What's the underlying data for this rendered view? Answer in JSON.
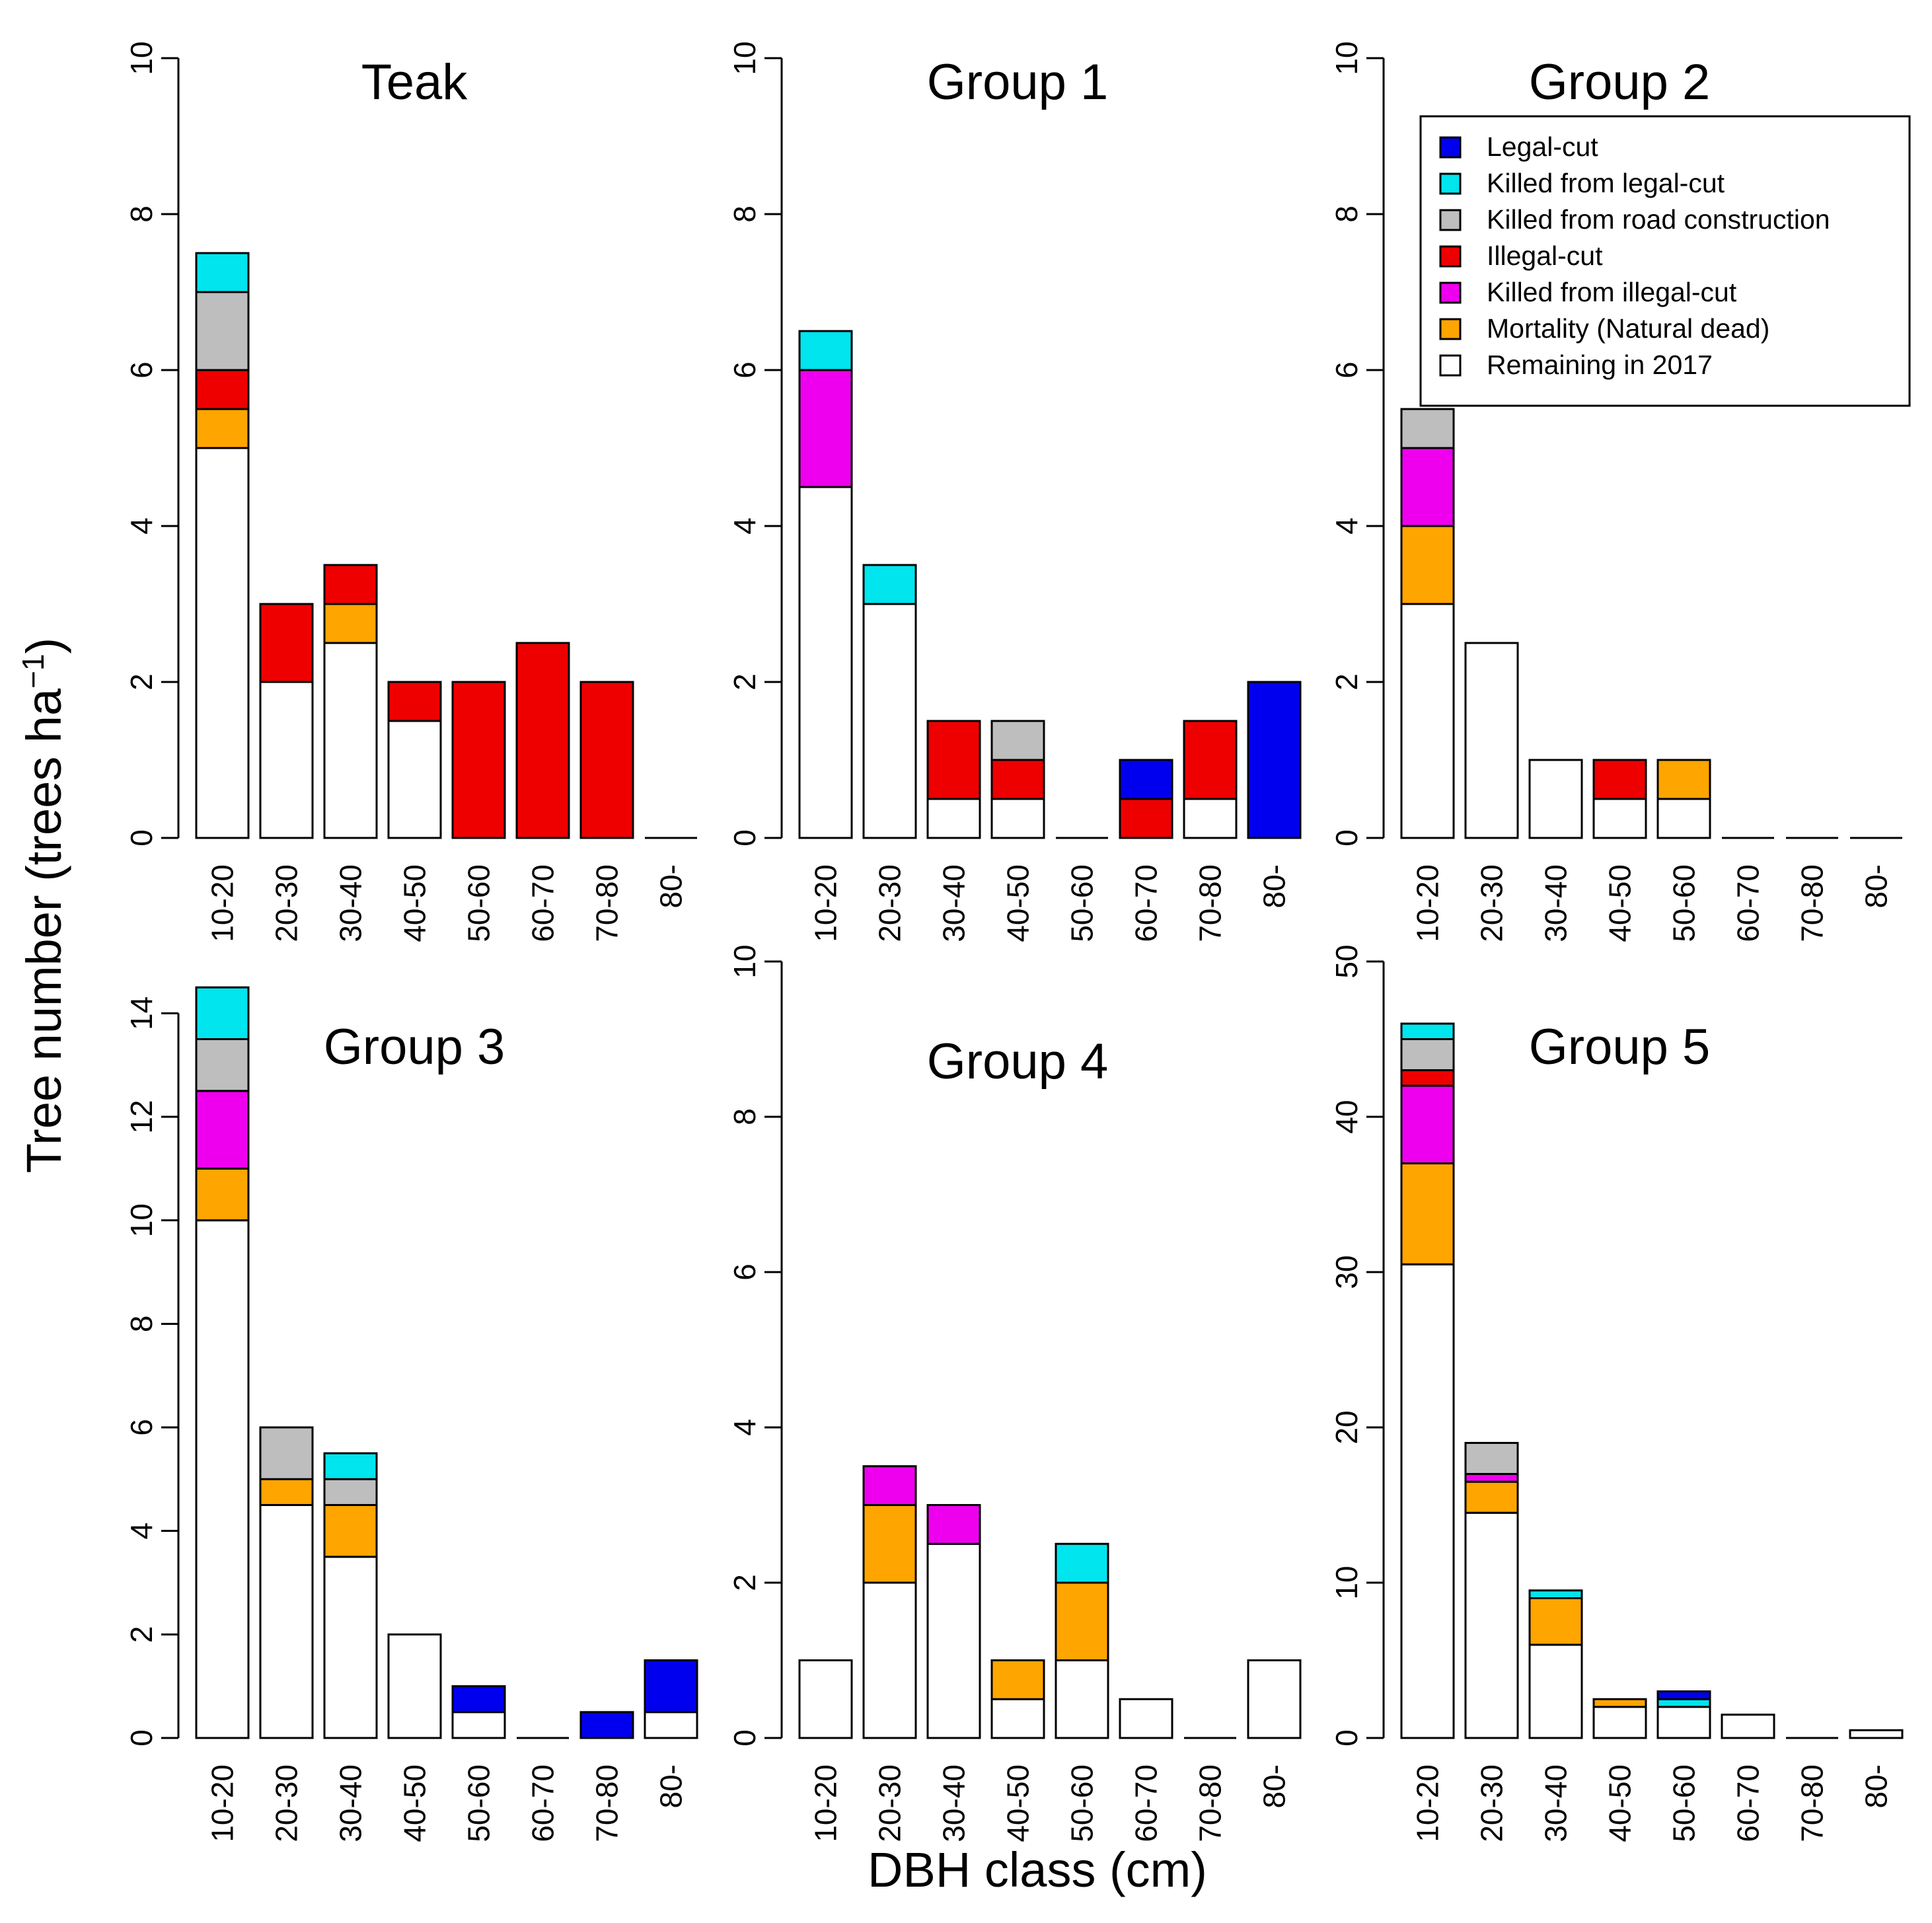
{
  "figure": {
    "ylabel_main": "Tree number (trees ha",
    "ylabel_sup": "−1",
    "ylabel_close": ")",
    "xlabel": "DBH class (cm)"
  },
  "colors": {
    "legal_cut": "#0000ee",
    "killed_legal_cut": "#00e5ee",
    "killed_road": "#bebebe",
    "illegal_cut": "#ee0000",
    "killed_illegal_cut": "#ee00ee",
    "mortality": "#ffa500",
    "remaining": "#ffffff"
  },
  "legend": [
    {
      "key": "legal_cut",
      "label": "Legal-cut"
    },
    {
      "key": "killed_legal_cut",
      "label": "Killed from legal-cut"
    },
    {
      "key": "killed_road",
      "label": "Killed from road construction"
    },
    {
      "key": "illegal_cut",
      "label": "Illegal-cut"
    },
    {
      "key": "killed_illegal_cut",
      "label": "Killed from illegal-cut"
    },
    {
      "key": "mortality",
      "label": "Mortality (Natural dead)"
    },
    {
      "key": "remaining",
      "label": "Remaining in 2017"
    }
  ],
  "chart_data": [
    {
      "type": "bar",
      "title": "Teak",
      "categories": [
        "10-20",
        "20-30",
        "30-40",
        "40-50",
        "50-60",
        "60-70",
        "70-80",
        "80-"
      ],
      "ylim": [
        0,
        10
      ],
      "yticks": [
        0,
        2,
        4,
        6,
        8,
        10
      ],
      "series": [
        {
          "name": "Remaining in 2017",
          "key": "remaining",
          "values": [
            5,
            2,
            2.5,
            1.5,
            0,
            0,
            0,
            0
          ]
        },
        {
          "name": "Mortality (Natural dead)",
          "key": "mortality",
          "values": [
            0.5,
            0,
            0.5,
            0,
            0,
            0,
            0,
            0
          ]
        },
        {
          "name": "Killed from illegal-cut",
          "key": "killed_illegal_cut",
          "values": [
            0,
            0,
            0,
            0,
            0,
            0,
            0,
            0
          ]
        },
        {
          "name": "Illegal-cut",
          "key": "illegal_cut",
          "values": [
            0.5,
            1,
            0.5,
            0.5,
            2,
            2.5,
            2,
            0
          ]
        },
        {
          "name": "Killed from road construction",
          "key": "killed_road",
          "values": [
            1,
            0,
            0,
            0,
            0,
            0,
            0,
            0
          ]
        },
        {
          "name": "Killed from legal-cut",
          "key": "killed_legal_cut",
          "values": [
            0.5,
            0,
            0,
            0,
            0,
            0,
            0,
            0
          ]
        },
        {
          "name": "Legal-cut",
          "key": "legal_cut",
          "values": [
            0,
            0,
            0,
            0,
            0,
            0,
            0,
            0
          ]
        }
      ]
    },
    {
      "type": "bar",
      "title": "Group 1",
      "categories": [
        "10-20",
        "20-30",
        "30-40",
        "40-50",
        "50-60",
        "60-70",
        "70-80",
        "80-"
      ],
      "ylim": [
        0,
        10
      ],
      "yticks": [
        0,
        2,
        4,
        6,
        8,
        10
      ],
      "series": [
        {
          "name": "Remaining in 2017",
          "key": "remaining",
          "values": [
            4.5,
            3,
            0.5,
            0.5,
            0,
            0,
            0.5,
            0
          ]
        },
        {
          "name": "Mortality (Natural dead)",
          "key": "mortality",
          "values": [
            0,
            0,
            0,
            0,
            0,
            0,
            0,
            0
          ]
        },
        {
          "name": "Killed from illegal-cut",
          "key": "killed_illegal_cut",
          "values": [
            1.5,
            0,
            0,
            0,
            0,
            0,
            0,
            0
          ]
        },
        {
          "name": "Illegal-cut",
          "key": "illegal_cut",
          "values": [
            0,
            0,
            1,
            0.5,
            0,
            0.5,
            1,
            0
          ]
        },
        {
          "name": "Killed from road construction",
          "key": "killed_road",
          "values": [
            0,
            0,
            0,
            0.5,
            0,
            0,
            0,
            0
          ]
        },
        {
          "name": "Killed from legal-cut",
          "key": "killed_legal_cut",
          "values": [
            0.5,
            0.5,
            0,
            0,
            0,
            0,
            0,
            0
          ]
        },
        {
          "name": "Legal-cut",
          "key": "legal_cut",
          "values": [
            0,
            0,
            0,
            0,
            0,
            0.5,
            0,
            2
          ]
        }
      ]
    },
    {
      "type": "bar",
      "title": "Group 2",
      "categories": [
        "10-20",
        "20-30",
        "30-40",
        "40-50",
        "50-60",
        "60-70",
        "70-80",
        "80-"
      ],
      "ylim": [
        0,
        10
      ],
      "yticks": [
        0,
        2,
        4,
        6,
        8,
        10
      ],
      "series": [
        {
          "name": "Remaining in 2017",
          "key": "remaining",
          "values": [
            3,
            2.5,
            1,
            0.5,
            0.5,
            0,
            0,
            0
          ]
        },
        {
          "name": "Mortality (Natural dead)",
          "key": "mortality",
          "values": [
            1,
            0,
            0,
            0,
            0.5,
            0,
            0,
            0
          ]
        },
        {
          "name": "Killed from illegal-cut",
          "key": "killed_illegal_cut",
          "values": [
            1,
            0,
            0,
            0,
            0,
            0,
            0,
            0
          ]
        },
        {
          "name": "Illegal-cut",
          "key": "illegal_cut",
          "values": [
            0,
            0,
            0,
            0.5,
            0,
            0,
            0,
            0
          ]
        },
        {
          "name": "Killed from road construction",
          "key": "killed_road",
          "values": [
            0.5,
            0,
            0,
            0,
            0,
            0,
            0,
            0
          ]
        },
        {
          "name": "Killed from legal-cut",
          "key": "killed_legal_cut",
          "values": [
            0,
            0,
            0,
            0,
            0,
            0,
            0,
            0
          ]
        },
        {
          "name": "Legal-cut",
          "key": "legal_cut",
          "values": [
            0,
            0,
            0,
            0,
            0,
            0,
            0,
            0
          ]
        }
      ]
    },
    {
      "type": "bar",
      "title": "Group 3",
      "categories": [
        "10-20",
        "20-30",
        "30-40",
        "40-50",
        "50-60",
        "60-70",
        "70-80",
        "80-"
      ],
      "ylim": [
        0,
        15
      ],
      "yticks": [
        0,
        2,
        4,
        6,
        8,
        10,
        12,
        14
      ],
      "series": [
        {
          "name": "Remaining in 2017",
          "key": "remaining",
          "values": [
            10,
            4.5,
            3.5,
            2,
            0.5,
            0,
            0,
            0.5
          ]
        },
        {
          "name": "Mortality (Natural dead)",
          "key": "mortality",
          "values": [
            1,
            0.5,
            1,
            0,
            0,
            0,
            0,
            0
          ]
        },
        {
          "name": "Killed from illegal-cut",
          "key": "killed_illegal_cut",
          "values": [
            1.5,
            0,
            0,
            0,
            0,
            0,
            0,
            0
          ]
        },
        {
          "name": "Illegal-cut",
          "key": "illegal_cut",
          "values": [
            0,
            0,
            0,
            0,
            0,
            0,
            0,
            0
          ]
        },
        {
          "name": "Killed from road construction",
          "key": "killed_road",
          "values": [
            1,
            1,
            0.5,
            0,
            0,
            0,
            0,
            0
          ]
        },
        {
          "name": "Killed from legal-cut",
          "key": "killed_legal_cut",
          "values": [
            1,
            0,
            0.5,
            0,
            0,
            0,
            0,
            0
          ]
        },
        {
          "name": "Legal-cut",
          "key": "legal_cut",
          "values": [
            0,
            0,
            0,
            0,
            0.5,
            0,
            0.5,
            1
          ]
        }
      ]
    },
    {
      "type": "bar",
      "title": "Group 4",
      "categories": [
        "10-20",
        "20-30",
        "30-40",
        "40-50",
        "50-60",
        "60-70",
        "70-80",
        "80-"
      ],
      "ylim": [
        0,
        10
      ],
      "yticks": [
        0,
        2,
        4,
        6,
        8,
        10
      ],
      "series": [
        {
          "name": "Remaining in 2017",
          "key": "remaining",
          "values": [
            1,
            2,
            2.5,
            0.5,
            1,
            0.5,
            0,
            1
          ]
        },
        {
          "name": "Mortality (Natural dead)",
          "key": "mortality",
          "values": [
            0,
            1,
            0,
            0.5,
            1,
            0,
            0,
            0
          ]
        },
        {
          "name": "Killed from illegal-cut",
          "key": "killed_illegal_cut",
          "values": [
            0,
            0.5,
            0.5,
            0,
            0,
            0,
            0,
            0
          ]
        },
        {
          "name": "Illegal-cut",
          "key": "illegal_cut",
          "values": [
            0,
            0,
            0,
            0,
            0,
            0,
            0,
            0
          ]
        },
        {
          "name": "Killed from road construction",
          "key": "killed_road",
          "values": [
            0,
            0,
            0,
            0,
            0,
            0,
            0,
            0
          ]
        },
        {
          "name": "Killed from legal-cut",
          "key": "killed_legal_cut",
          "values": [
            0,
            0,
            0,
            0,
            0.5,
            0,
            0,
            0
          ]
        },
        {
          "name": "Legal-cut",
          "key": "legal_cut",
          "values": [
            0,
            0,
            0,
            0,
            0,
            0,
            0,
            0
          ]
        }
      ]
    },
    {
      "type": "bar",
      "title": "Group 5",
      "categories": [
        "10-20",
        "20-30",
        "30-40",
        "40-50",
        "50-60",
        "60-70",
        "70-80",
        "80-"
      ],
      "ylim": [
        0,
        50
      ],
      "yticks": [
        0,
        10,
        20,
        30,
        40,
        50
      ],
      "series": [
        {
          "name": "Remaining in 2017",
          "key": "remaining",
          "values": [
            30.5,
            14.5,
            6,
            2,
            2,
            1.5,
            0,
            0.5
          ]
        },
        {
          "name": "Mortality (Natural dead)",
          "key": "mortality",
          "values": [
            6.5,
            2,
            3,
            0.5,
            0,
            0,
            0,
            0
          ]
        },
        {
          "name": "Killed from illegal-cut",
          "key": "killed_illegal_cut",
          "values": [
            5,
            0.5,
            0,
            0,
            0,
            0,
            0,
            0
          ]
        },
        {
          "name": "Illegal-cut",
          "key": "illegal_cut",
          "values": [
            1,
            0,
            0,
            0,
            0,
            0,
            0,
            0
          ]
        },
        {
          "name": "Killed from road construction",
          "key": "killed_road",
          "values": [
            2,
            2,
            0,
            0,
            0,
            0,
            0,
            0
          ]
        },
        {
          "name": "Killed from legal-cut",
          "key": "killed_legal_cut",
          "values": [
            1,
            0,
            0.5,
            0,
            0.5,
            0,
            0,
            0
          ]
        },
        {
          "name": "Legal-cut",
          "key": "legal_cut",
          "values": [
            0,
            0,
            0,
            0,
            0.5,
            0,
            0,
            0
          ]
        }
      ]
    }
  ]
}
